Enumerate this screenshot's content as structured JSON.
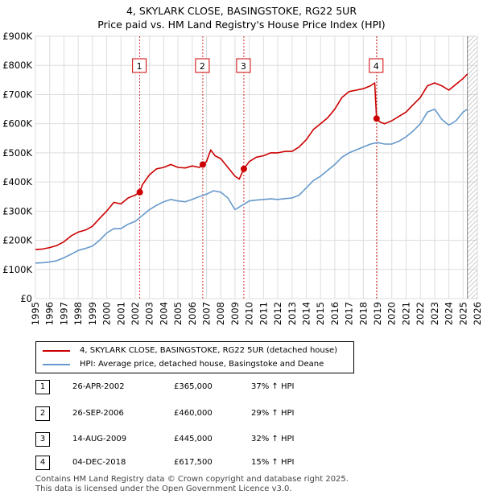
{
  "title": "4, SKYLARK CLOSE, BASINGSTOKE, RG22 5UR",
  "subtitle": "Price paid vs. HM Land Registry's House Price Index (HPI)",
  "colors": {
    "property": "#cc0000",
    "hpi": "#6699cc",
    "grid": "#dddddd",
    "marker": "#cc0000"
  },
  "legend": {
    "property_label": "4, SKYLARK CLOSE, BASINGSTOKE, RG22 5UR (detached house)",
    "hpi_label": "HPI: Average price, detached house, Basingstoke and Deane"
  },
  "sales": [
    {
      "num": "1",
      "date": "26-APR-2002",
      "price": "£365,000",
      "hpi": "37% ↑ HPI"
    },
    {
      "num": "2",
      "date": "26-SEP-2006",
      "price": "£460,000",
      "hpi": "29% ↑ HPI"
    },
    {
      "num": "3",
      "date": "14-AUG-2009",
      "price": "£445,000",
      "hpi": "32% ↑ HPI"
    },
    {
      "num": "4",
      "date": "04-DEC-2018",
      "price": "£617,500",
      "hpi": "15% ↑ HPI"
    }
  ],
  "footer": {
    "line1": "Contains HM Land Registry data © Crown copyright and database right 2025.",
    "line2": "This data is licensed under the Open Government Licence v3.0."
  },
  "chart_data": {
    "type": "line",
    "title": "4, SKYLARK CLOSE, BASINGSTOKE, RG22 5UR",
    "subtitle": "Price paid vs. HM Land Registry's House Price Index (HPI)",
    "xlabel": "",
    "ylabel": "",
    "xlim": [
      1995,
      2026
    ],
    "ylim": [
      0,
      900000
    ],
    "x_ticks": [
      "1995",
      "1996",
      "1997",
      "1998",
      "1999",
      "2000",
      "2001",
      "2002",
      "2003",
      "2004",
      "2005",
      "2006",
      "2007",
      "2008",
      "2009",
      "2010",
      "2011",
      "2012",
      "2013",
      "2014",
      "2015",
      "2016",
      "2017",
      "2018",
      "2019",
      "2020",
      "2021",
      "2022",
      "2023",
      "2024",
      "2025",
      "2026"
    ],
    "y_ticks": [
      {
        "value": 0,
        "label": "£0"
      },
      {
        "value": 100000,
        "label": "£100K"
      },
      {
        "value": 200000,
        "label": "£200K"
      },
      {
        "value": 300000,
        "label": "£300K"
      },
      {
        "value": 400000,
        "label": "£400K"
      },
      {
        "value": 500000,
        "label": "£500K"
      },
      {
        "value": 600000,
        "label": "£600K"
      },
      {
        "value": 700000,
        "label": "£700K"
      },
      {
        "value": 800000,
        "label": "£800K"
      },
      {
        "value": 900000,
        "label": "£900K"
      }
    ],
    "grid": true,
    "forecast_start": 2025.3,
    "series": [
      {
        "name": "4, SKYLARK CLOSE, BASINGSTOKE, RG22 5UR (detached house)",
        "x": [
          1995.0,
          1995.5,
          1996.0,
          1996.5,
          1997.0,
          1997.5,
          1998.0,
          1998.5,
          1999.0,
          1999.5,
          2000.0,
          2000.5,
          2001.0,
          2001.5,
          2002.0,
          2002.32,
          2002.5,
          2003.0,
          2003.5,
          2004.0,
          2004.5,
          2005.0,
          2005.5,
          2006.0,
          2006.5,
          2006.74,
          2007.0,
          2007.3,
          2007.6,
          2008.0,
          2008.5,
          2009.0,
          2009.3,
          2009.62,
          2010.0,
          2010.5,
          2011.0,
          2011.5,
          2012.0,
          2012.5,
          2013.0,
          2013.5,
          2014.0,
          2014.5,
          2015.0,
          2015.5,
          2016.0,
          2016.5,
          2017.0,
          2017.5,
          2018.0,
          2018.5,
          2018.8,
          2018.93,
          2019.2,
          2019.5,
          2020.0,
          2020.5,
          2021.0,
          2021.5,
          2022.0,
          2022.5,
          2023.0,
          2023.5,
          2024.0,
          2024.5,
          2025.0,
          2025.3
        ],
        "values": [
          168000,
          170000,
          175000,
          182000,
          195000,
          215000,
          228000,
          235000,
          248000,
          275000,
          300000,
          330000,
          325000,
          345000,
          355000,
          365000,
          390000,
          425000,
          445000,
          450000,
          460000,
          450000,
          448000,
          455000,
          450000,
          460000,
          470000,
          510000,
          490000,
          480000,
          450000,
          420000,
          410000,
          445000,
          470000,
          485000,
          490000,
          500000,
          500000,
          505000,
          505000,
          520000,
          545000,
          580000,
          600000,
          620000,
          650000,
          690000,
          710000,
          715000,
          720000,
          730000,
          740000,
          617500,
          605000,
          600000,
          610000,
          625000,
          640000,
          665000,
          690000,
          730000,
          740000,
          730000,
          715000,
          735000,
          755000,
          770000
        ]
      },
      {
        "name": "HPI: Average price, detached house, Basingstoke and Deane",
        "x": [
          1995.0,
          1995.5,
          1996.0,
          1996.5,
          1997.0,
          1997.5,
          1998.0,
          1998.5,
          1999.0,
          1999.5,
          2000.0,
          2000.5,
          2001.0,
          2001.5,
          2002.0,
          2002.5,
          2003.0,
          2003.5,
          2004.0,
          2004.5,
          2005.0,
          2005.5,
          2006.0,
          2006.5,
          2007.0,
          2007.5,
          2008.0,
          2008.5,
          2009.0,
          2009.5,
          2010.0,
          2010.5,
          2011.0,
          2011.5,
          2012.0,
          2012.5,
          2013.0,
          2013.5,
          2014.0,
          2014.5,
          2015.0,
          2015.5,
          2016.0,
          2016.5,
          2017.0,
          2017.5,
          2018.0,
          2018.5,
          2019.0,
          2019.5,
          2020.0,
          2020.5,
          2021.0,
          2021.5,
          2022.0,
          2022.5,
          2023.0,
          2023.5,
          2024.0,
          2024.5,
          2025.0,
          2025.3
        ],
        "values": [
          122000,
          123000,
          126000,
          130000,
          140000,
          152000,
          165000,
          172000,
          180000,
          200000,
          225000,
          240000,
          240000,
          255000,
          265000,
          285000,
          305000,
          320000,
          332000,
          340000,
          335000,
          332000,
          340000,
          350000,
          358000,
          370000,
          365000,
          345000,
          305000,
          320000,
          335000,
          338000,
          340000,
          342000,
          340000,
          343000,
          345000,
          355000,
          380000,
          405000,
          420000,
          440000,
          460000,
          485000,
          500000,
          510000,
          520000,
          530000,
          535000,
          530000,
          530000,
          540000,
          555000,
          575000,
          600000,
          640000,
          650000,
          615000,
          595000,
          610000,
          640000,
          650000
        ]
      }
    ],
    "annotations": [
      {
        "label": "1",
        "x": 2002.32,
        "y": 365000
      },
      {
        "label": "2",
        "x": 2006.74,
        "y": 460000
      },
      {
        "label": "3",
        "x": 2009.62,
        "y": 445000
      },
      {
        "label": "4",
        "x": 2018.93,
        "y": 617500
      }
    ]
  }
}
